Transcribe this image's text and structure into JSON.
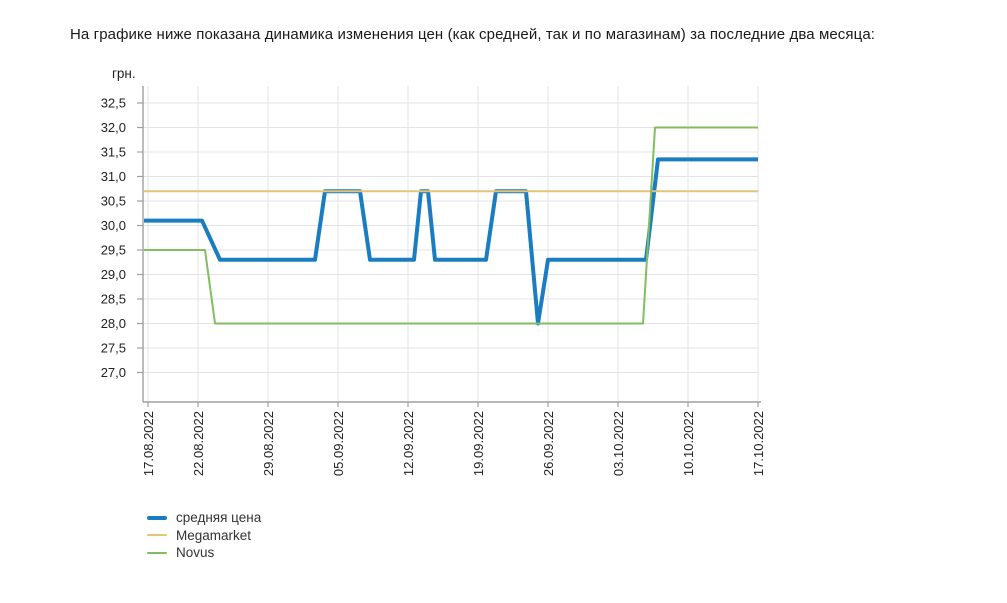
{
  "page": {
    "title": "На графике ниже показана динамика изменения цен (как средней, так и по магазинам) за последние два месяца:"
  },
  "chart_data": {
    "type": "line",
    "title": "",
    "ylabel": "грн.",
    "xlabel": "",
    "grid": true,
    "legend_position": "bottom-left",
    "x_unit": "days since 17.08.2022",
    "x_range_days": [
      0,
      61
    ],
    "ylim": [
      26.4,
      32.85
    ],
    "x_ticks": [
      {
        "day": 0,
        "label": "17.08.2022"
      },
      {
        "day": 5,
        "label": "22.08.2022"
      },
      {
        "day": 12,
        "label": "29.08.2022"
      },
      {
        "day": 19,
        "label": "05.09.2022"
      },
      {
        "day": 26,
        "label": "12.09.2022"
      },
      {
        "day": 33,
        "label": "19.09.2022"
      },
      {
        "day": 40,
        "label": "26.09.2022"
      },
      {
        "day": 47,
        "label": "03.10.2022"
      },
      {
        "day": 54,
        "label": "10.10.2022"
      },
      {
        "day": 61,
        "label": "17.10.2022"
      }
    ],
    "y_ticks": [
      {
        "value": 32.5,
        "label": "32,5"
      },
      {
        "value": 32.0,
        "label": "32,0"
      },
      {
        "value": 31.5,
        "label": "31,5"
      },
      {
        "value": 31.0,
        "label": "31,0"
      },
      {
        "value": 30.5,
        "label": "30,5"
      },
      {
        "value": 30.0,
        "label": "30,0"
      },
      {
        "value": 29.5,
        "label": "29,5"
      },
      {
        "value": 29.0,
        "label": "29,0"
      },
      {
        "value": 28.5,
        "label": "28,5"
      },
      {
        "value": 28.0,
        "label": "28,0"
      },
      {
        "value": 27.5,
        "label": "27,5"
      },
      {
        "value": 27.0,
        "label": "27,0"
      }
    ],
    "series": [
      {
        "name": "средняя цена",
        "color": "#1a7dc2",
        "width": 4,
        "points": [
          [
            0,
            30.1
          ],
          [
            5.4,
            30.1
          ],
          [
            7.2,
            29.3
          ],
          [
            16.7,
            29.3
          ],
          [
            17.7,
            30.7
          ],
          [
            21.2,
            30.7
          ],
          [
            22.2,
            29.3
          ],
          [
            26.6,
            29.3
          ],
          [
            27.3,
            30.7
          ],
          [
            28.0,
            30.7
          ],
          [
            28.7,
            29.3
          ],
          [
            33.8,
            29.3
          ],
          [
            34.8,
            30.7
          ],
          [
            37.8,
            30.7
          ],
          [
            39.0,
            28.0
          ],
          [
            40.0,
            29.3
          ],
          [
            49.8,
            29.3
          ],
          [
            51.0,
            31.35
          ],
          [
            61,
            31.35
          ]
        ]
      },
      {
        "name": "Megamarket",
        "color": "#e4c476",
        "width": 2,
        "points": [
          [
            0,
            30.7
          ],
          [
            61,
            30.7
          ]
        ]
      },
      {
        "name": "Novus",
        "color": "#82bd60",
        "width": 2,
        "points": [
          [
            0,
            29.5
          ],
          [
            5.7,
            29.5
          ],
          [
            6.7,
            28.0
          ],
          [
            49.5,
            28.0
          ],
          [
            50.7,
            32.0
          ],
          [
            61,
            32.0
          ]
        ]
      }
    ],
    "legend": [
      {
        "label": "средняя цена",
        "color": "#1a7dc2",
        "thickness": 4
      },
      {
        "label": "Megamarket",
        "color": "#e4c476",
        "thickness": 2
      },
      {
        "label": "Novus",
        "color": "#82bd60",
        "thickness": 2
      }
    ]
  },
  "colors": {
    "background": "#ffffff",
    "grid": "#e3e3e3",
    "axis": "#a0a0a0",
    "tick_text": "#222222",
    "title_text": "#1a1a1a"
  }
}
